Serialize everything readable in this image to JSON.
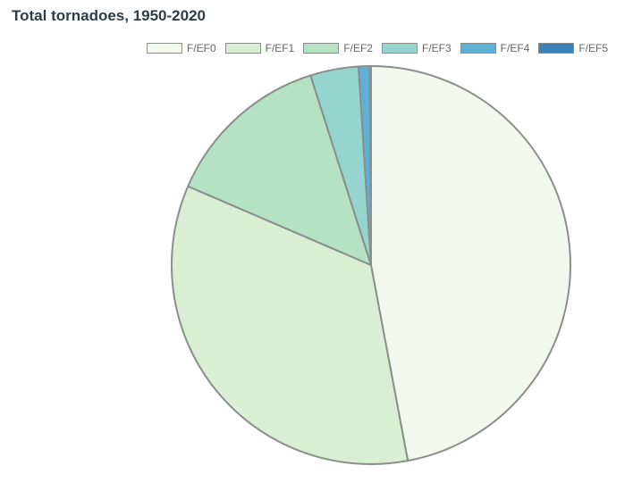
{
  "chart_data": {
    "type": "pie",
    "title": "Total tornadoes, 1950-2020",
    "legend_position": "top",
    "slices": [
      {
        "label": "F/EF0",
        "value": 47.0,
        "color": "#f2f8ed"
      },
      {
        "label": "F/EF1",
        "value": 34.4,
        "color": "#d8efd3"
      },
      {
        "label": "F/EF2",
        "value": 13.6,
        "color": "#b5e2c3"
      },
      {
        "label": "F/EF3",
        "value": 3.9,
        "color": "#95d5cf"
      },
      {
        "label": "F/EF4",
        "value": 0.9,
        "color": "#5fb0d6"
      },
      {
        "label": "F/EF5",
        "value": 0.1,
        "color": "#3b82ba"
      }
    ],
    "slice_border_color": "#8a8f8c"
  }
}
